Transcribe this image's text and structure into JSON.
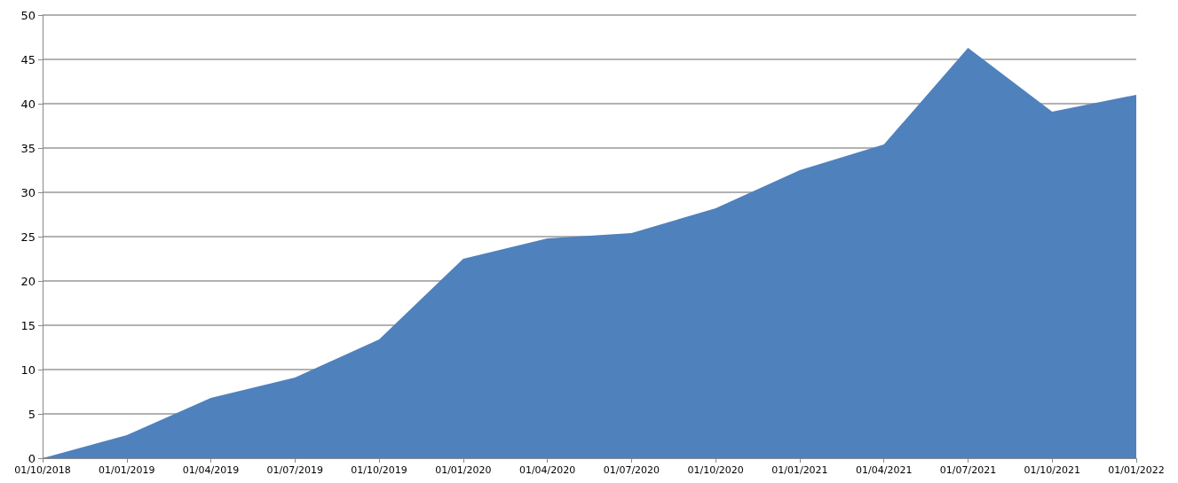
{
  "chart_data": {
    "type": "area",
    "categories": [
      "01/10/2018",
      "01/01/2019",
      "01/04/2019",
      "01/07/2019",
      "01/10/2019",
      "01/01/2020",
      "01/04/2020",
      "01/07/2020",
      "01/10/2020",
      "01/01/2021",
      "01/04/2021",
      "01/07/2021",
      "01/10/2021",
      "01/01/2022"
    ],
    "series": [
      {
        "color": "#4f81bd",
        "values": [
          0,
          2.6,
          6.8,
          9.1,
          13.4,
          22.5,
          24.8,
          25.4,
          28.2,
          32.5,
          35.4,
          46.3,
          39.1,
          41.0
        ]
      }
    ],
    "ylim": [
      0,
      50
    ],
    "yticks": [
      0,
      5,
      10,
      15,
      20,
      25,
      30,
      35,
      40,
      45,
      50
    ],
    "grid": "y"
  }
}
